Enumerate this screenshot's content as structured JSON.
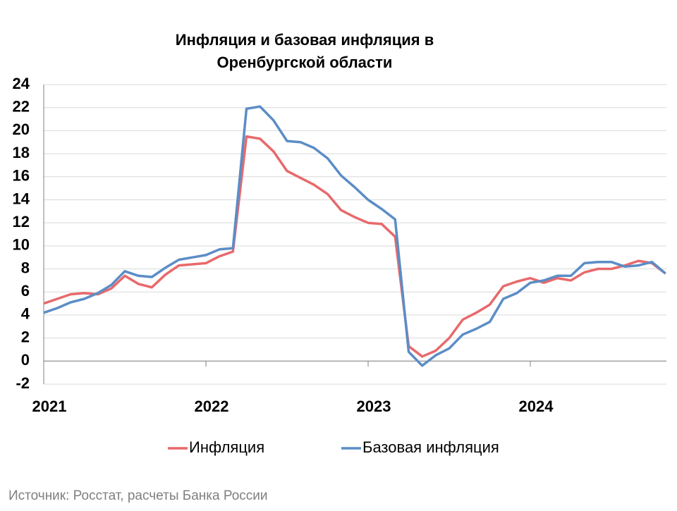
{
  "chart_data": {
    "type": "line",
    "title": [
      "Инфляция и базовая инфляция в",
      "Оренбургской области"
    ],
    "categories": [
      "2021",
      null,
      null,
      null,
      null,
      null,
      null,
      null,
      null,
      null,
      null,
      null,
      "2022",
      null,
      null,
      null,
      null,
      null,
      null,
      null,
      null,
      null,
      null,
      null,
      "2023",
      null,
      null,
      null,
      null,
      null,
      null,
      null,
      null,
      null,
      null,
      null,
      "2024",
      null,
      null,
      null,
      null,
      null,
      null,
      null,
      null,
      null,
      null
    ],
    "series": [
      {
        "name": "Инфляция",
        "color": "#e8696b",
        "values": [
          5.0,
          5.4,
          5.8,
          5.9,
          5.8,
          6.3,
          7.4,
          6.7,
          6.4,
          7.5,
          8.3,
          8.4,
          8.5,
          9.1,
          9.5,
          19.5,
          19.3,
          18.2,
          16.5,
          15.9,
          15.3,
          14.5,
          13.1,
          12.5,
          12.0,
          11.9,
          10.8,
          1.3,
          0.4,
          0.9,
          2.0,
          3.6,
          4.2,
          4.9,
          6.5,
          6.9,
          7.2,
          6.8,
          7.2,
          7.0,
          7.7,
          8.0,
          8.0,
          8.3,
          8.7,
          8.5,
          7.6
        ]
      },
      {
        "name": "Базовая инфляция",
        "color": "#5b8dc6",
        "values": [
          4.2,
          4.6,
          5.1,
          5.4,
          5.9,
          6.6,
          7.8,
          7.4,
          7.3,
          8.1,
          8.8,
          9.0,
          9.2,
          9.7,
          9.8,
          21.9,
          22.1,
          20.9,
          19.1,
          19.0,
          18.5,
          17.6,
          16.1,
          15.1,
          14.0,
          13.2,
          12.3,
          0.8,
          -0.4,
          0.5,
          1.1,
          2.3,
          2.8,
          3.4,
          5.4,
          5.9,
          6.8,
          7.0,
          7.4,
          7.4,
          8.5,
          8.6,
          8.6,
          8.2,
          8.3,
          8.6,
          7.6
        ]
      }
    ],
    "ylim": [
      -2,
      24
    ],
    "yticks": [
      -2,
      0,
      2,
      4,
      6,
      8,
      10,
      12,
      14,
      16,
      18,
      20,
      22,
      24
    ],
    "grid": true,
    "legend": "bottom",
    "source": "Источник: Росстат, расчеты Банка России"
  }
}
